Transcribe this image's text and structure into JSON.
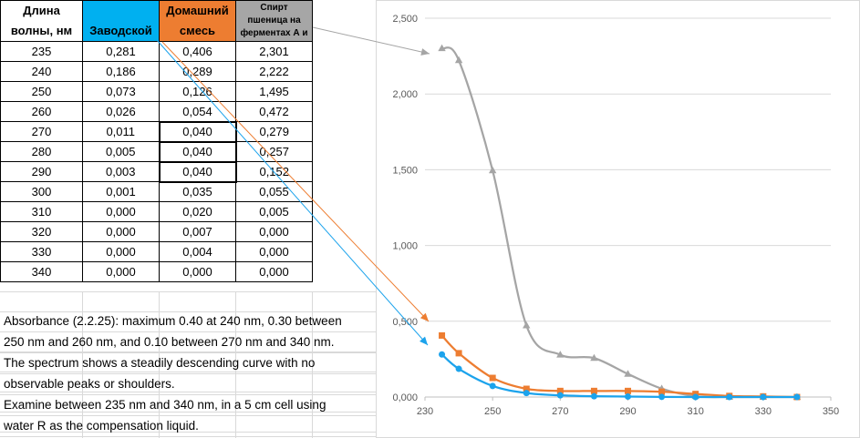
{
  "table": {
    "headers": {
      "wavelength": [
        "Длина",
        "волны, нм"
      ],
      "factory": "Заводской",
      "home": [
        "Домашний",
        "смесь"
      ],
      "spirit": [
        "Спирт",
        "пшеница на",
        "ферментах А и"
      ]
    },
    "rows": [
      [
        "235",
        "0,281",
        "0,406",
        "2,301"
      ],
      [
        "240",
        "0,186",
        "0,289",
        "2,222"
      ],
      [
        "250",
        "0,073",
        "0,126",
        "1,495"
      ],
      [
        "260",
        "0,026",
        "0,054",
        "0,472"
      ],
      [
        "270",
        "0,011",
        "0,040",
        "0,279"
      ],
      [
        "280",
        "0,005",
        "0,040",
        "0,257"
      ],
      [
        "290",
        "0,003",
        "0,040",
        "0,152"
      ],
      [
        "300",
        "0,001",
        "0,035",
        "0,055"
      ],
      [
        "310",
        "0,000",
        "0,020",
        "0,005"
      ],
      [
        "320",
        "0,000",
        "0,007",
        "0,000"
      ],
      [
        "330",
        "0,000",
        "0,004",
        "0,000"
      ],
      [
        "340",
        "0,000",
        "0,000",
        "0,000"
      ]
    ]
  },
  "notes": [
    "Absorbance (2.2.25): maximum 0.40 at 240 nm, 0.30 between",
    "250 nm and 260 nm, and 0.10 between 270 nm and 340 nm.",
    "The spectrum shows a steadily descending curve with no",
    "observable peaks or shoulders.",
    "Examine between 235 nm and 340 nm, in a 5 cm cell using",
    "water R as the compensation liquid."
  ],
  "colors": {
    "factory": "#00b0f0",
    "home": "#ed7d31",
    "spirit": "#a6a6a6",
    "factory_line": "#1ca3ec",
    "home_line": "#ed7d31",
    "spirit_line": "#a5a5a5"
  },
  "chart_data": {
    "type": "line",
    "xlim": [
      230,
      350
    ],
    "ylim": [
      0,
      2.5
    ],
    "x_ticks": [
      "230",
      "250",
      "270",
      "290",
      "310",
      "330",
      "350"
    ],
    "y_ticks": [
      "0,000",
      "0,500",
      "1,000",
      "1,500",
      "2,000",
      "2,500"
    ],
    "grid": "horizontal",
    "x": [
      235,
      240,
      250,
      260,
      270,
      280,
      290,
      300,
      310,
      320,
      330,
      340
    ],
    "series": [
      {
        "name": "Заводской",
        "marker": "circle",
        "color": "#1ca3ec",
        "values": [
          0.281,
          0.186,
          0.073,
          0.026,
          0.011,
          0.005,
          0.003,
          0.001,
          0.0,
          0.0,
          0.0,
          0.0
        ]
      },
      {
        "name": "Домашний смесь",
        "marker": "square",
        "color": "#ed7d31",
        "values": [
          0.406,
          0.289,
          0.126,
          0.054,
          0.04,
          0.04,
          0.04,
          0.035,
          0.02,
          0.007,
          0.004,
          0.0
        ]
      },
      {
        "name": "Спирт пшеница на ферментах А и",
        "marker": "triangle",
        "color": "#a5a5a5",
        "values": [
          2.301,
          2.222,
          1.495,
          0.472,
          0.279,
          0.257,
          0.152,
          0.055,
          0.005,
          0.0,
          0.0,
          0.0
        ]
      }
    ]
  }
}
